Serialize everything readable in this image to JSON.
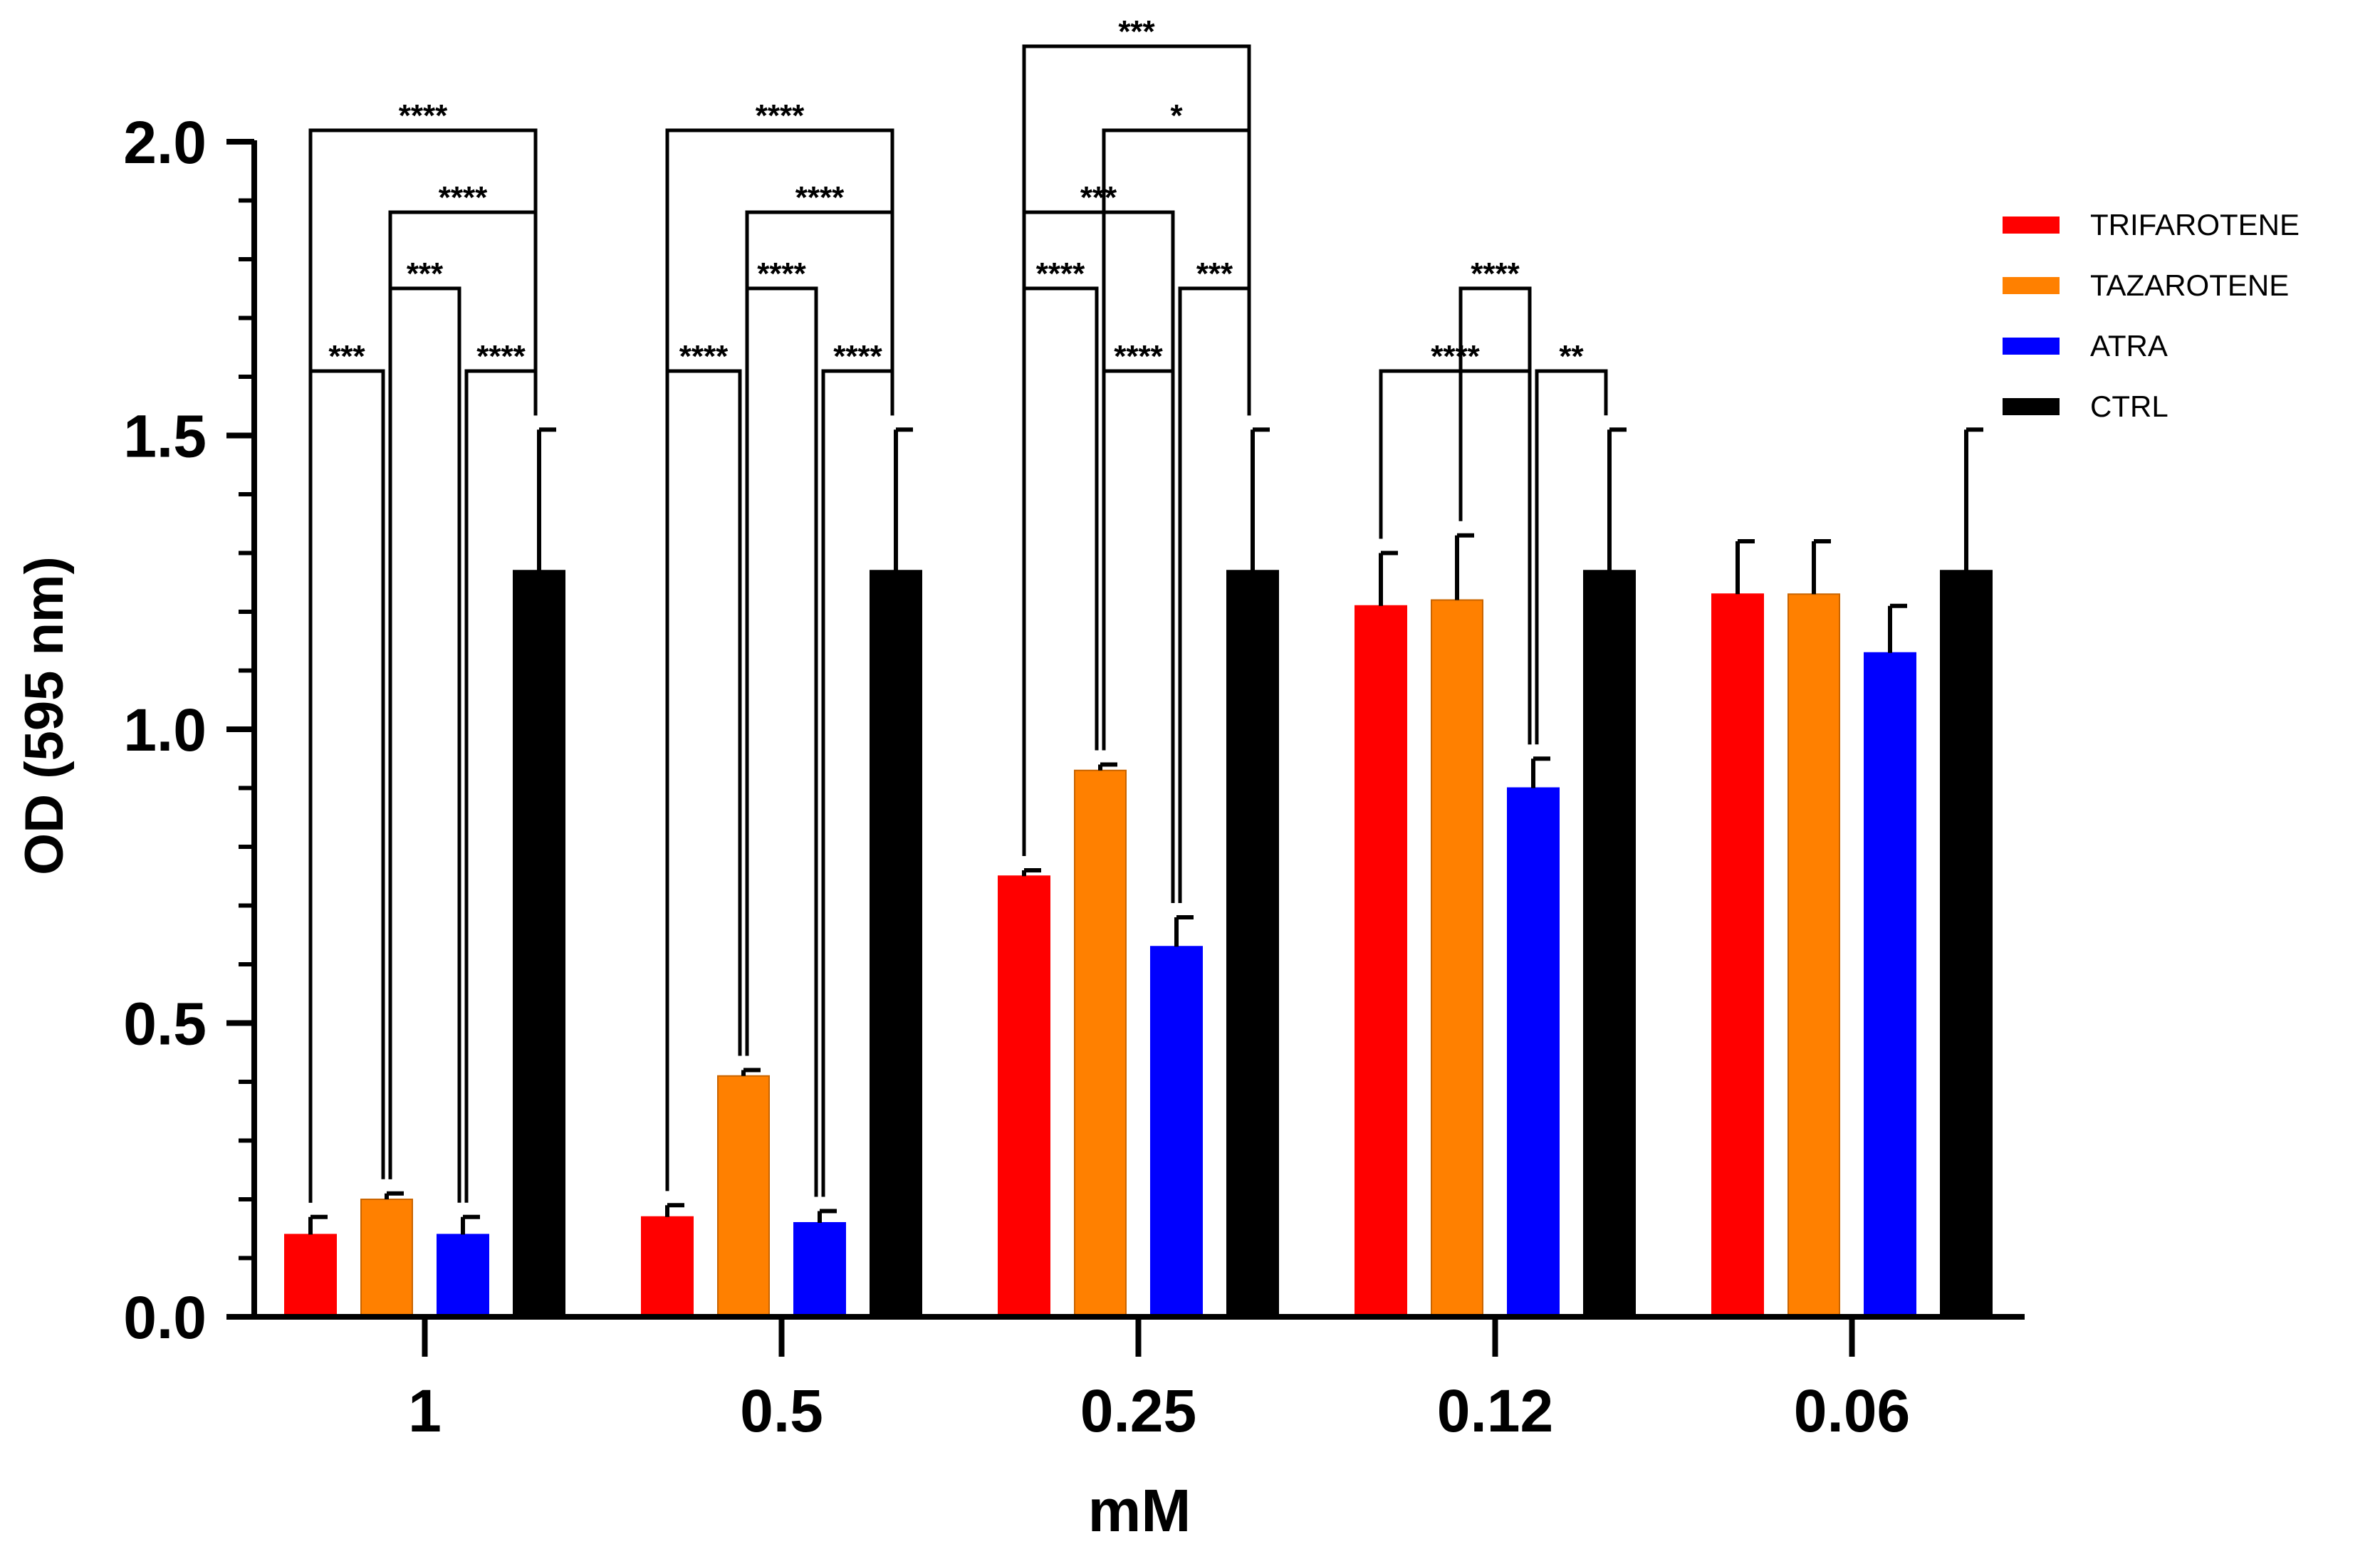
{
  "chart_data": {
    "type": "bar",
    "title": "",
    "xlabel": "mM",
    "ylabel": "OD (595 nm)",
    "ylim": [
      0,
      2.0
    ],
    "yticks": [
      "0.0",
      "0.5",
      "1.0",
      "1.5",
      "2.0"
    ],
    "categories": [
      "1",
      "0.5",
      "0.25",
      "0.12",
      "0.06"
    ],
    "legend_position": "top-right",
    "series": [
      {
        "name": "TRIFAROTENE",
        "color": "#ff0000",
        "values": [
          0.14,
          0.17,
          0.75,
          1.21,
          1.23
        ],
        "errors": [
          0.03,
          0.02,
          0.01,
          0.09,
          0.09
        ]
      },
      {
        "name": "TAZAROTENE",
        "color": "#ff8000",
        "values": [
          0.2,
          0.41,
          0.93,
          1.22,
          1.23
        ],
        "errors": [
          0.01,
          0.01,
          0.01,
          0.11,
          0.09
        ]
      },
      {
        "name": "ATRA",
        "color": "#0000ff",
        "values": [
          0.14,
          0.16,
          0.63,
          0.9,
          1.13
        ],
        "errors": [
          0.03,
          0.02,
          0.05,
          0.05,
          0.08
        ]
      },
      {
        "name": "CTRL",
        "color": "#000000",
        "values": [
          1.27,
          1.27,
          1.27,
          1.27,
          1.27
        ],
        "errors": [
          0.24,
          0.24,
          0.24,
          0.24,
          0.24
        ]
      }
    ],
    "significance": [
      {
        "category": "1",
        "from": 0,
        "to": 3,
        "level": 0,
        "stars": "****"
      },
      {
        "category": "1",
        "from": 1,
        "to": 3,
        "level": 1,
        "stars": "****"
      },
      {
        "category": "1",
        "from": 1,
        "to": 2,
        "level": 2,
        "stars": "***"
      },
      {
        "category": "1",
        "from": 0,
        "to": 1,
        "level": 3,
        "stars": "***"
      },
      {
        "category": "1",
        "from": 2,
        "to": 3,
        "level": 3,
        "stars": "****"
      },
      {
        "category": "0.5",
        "from": 0,
        "to": 3,
        "level": 0,
        "stars": "****"
      },
      {
        "category": "0.5",
        "from": 1,
        "to": 3,
        "level": 1,
        "stars": "****"
      },
      {
        "category": "0.5",
        "from": 1,
        "to": 2,
        "level": 2,
        "stars": "****"
      },
      {
        "category": "0.5",
        "from": 0,
        "to": 1,
        "level": 3,
        "stars": "****"
      },
      {
        "category": "0.5",
        "from": 2,
        "to": 3,
        "level": 3,
        "stars": "****"
      },
      {
        "category": "0.25",
        "from": 0,
        "to": 3,
        "level": -1,
        "stars": "***"
      },
      {
        "category": "0.25",
        "from": 1,
        "to": 3,
        "level": 0,
        "stars": "*"
      },
      {
        "category": "0.25",
        "from": 0,
        "to": 2,
        "level": 1,
        "stars": "***"
      },
      {
        "category": "0.25",
        "from": 0,
        "to": 1,
        "level": 2,
        "stars": "****"
      },
      {
        "category": "0.25",
        "from": 2,
        "to": 3,
        "level": 2,
        "stars": "***"
      },
      {
        "category": "0.25",
        "from": 1,
        "to": 2,
        "level": 3,
        "stars": "****"
      },
      {
        "category": "0.12",
        "from": 1,
        "to": 2,
        "level": 2,
        "stars": "****"
      },
      {
        "category": "0.12",
        "from": 0,
        "to": 2,
        "level": 3,
        "stars": "****"
      },
      {
        "category": "0.12",
        "from": 2,
        "to": 3,
        "level": 3,
        "stars": "**"
      }
    ]
  }
}
